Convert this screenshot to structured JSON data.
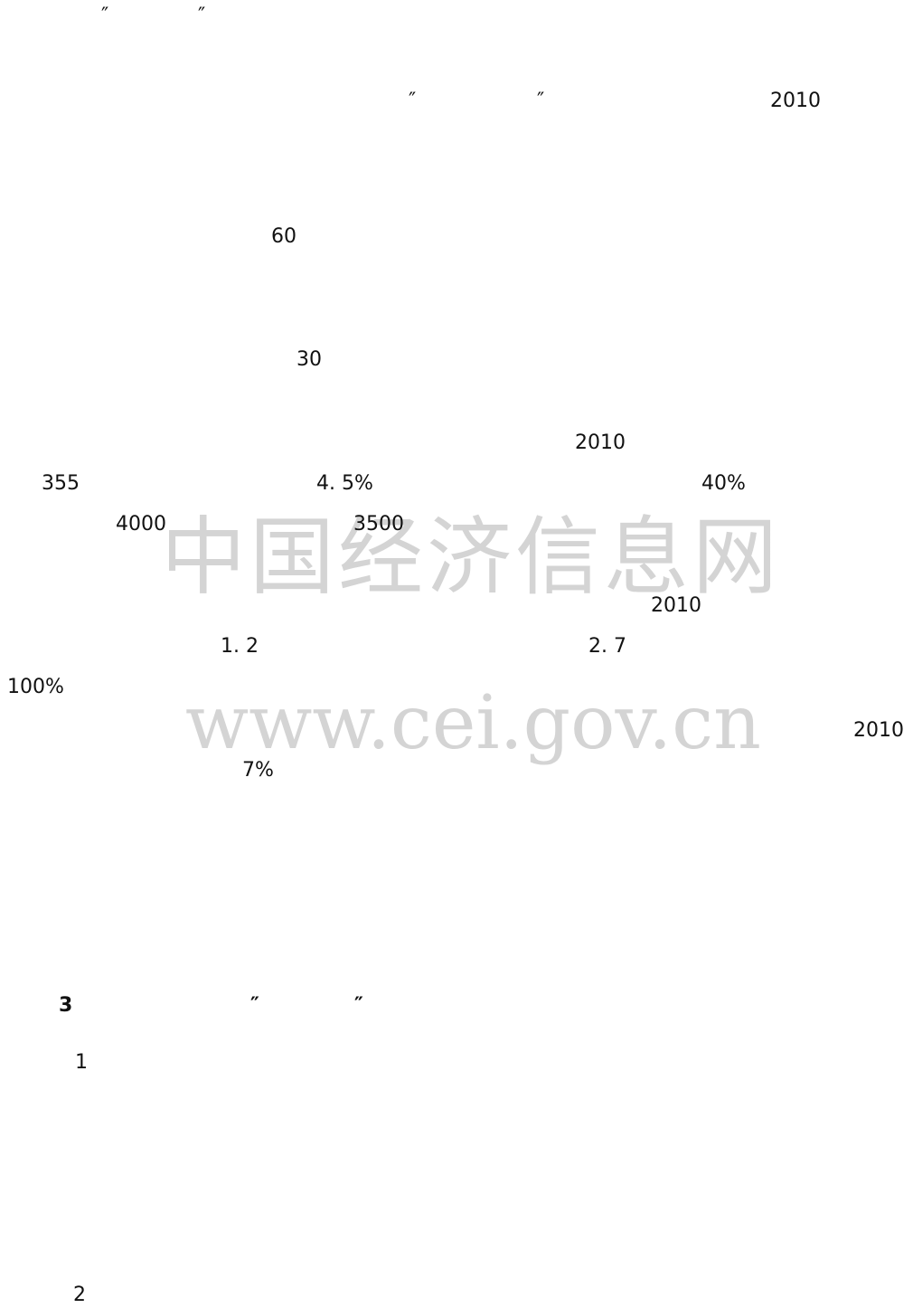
{
  "watermark": {
    "title": "中国经济信息网",
    "url": "www.cei.gov.cn"
  },
  "fragments": [
    "″",
    "″",
    "″",
    "″",
    "2010",
    "60",
    "30",
    "2010",
    "355",
    "4. 5%",
    "40%",
    "4000",
    "3500",
    "2010",
    "1. 2",
    "2. 7",
    "100%",
    "2010",
    "7%",
    "3",
    "″",
    "″",
    "1",
    "2"
  ]
}
